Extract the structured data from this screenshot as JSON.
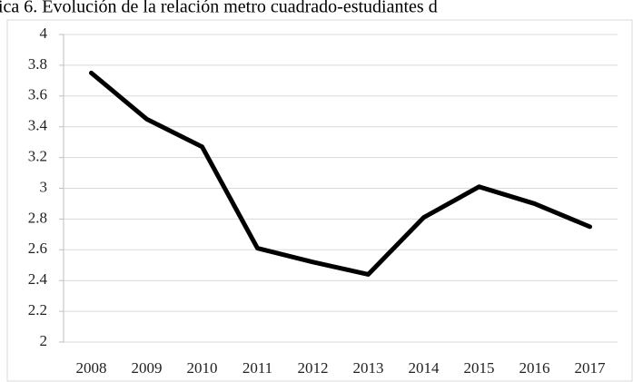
{
  "chart_data": {
    "type": "line",
    "title": "ica 6. Evolución de la relación metro cuadrado-estudiantes d",
    "categories": [
      "2008",
      "2009",
      "2010",
      "2011",
      "2012",
      "2013",
      "2014",
      "2015",
      "2016",
      "2017"
    ],
    "values": [
      3.75,
      3.45,
      3.27,
      2.61,
      2.52,
      2.44,
      2.81,
      3.01,
      2.9,
      2.75
    ],
    "color": "#000000",
    "ylim": [
      2,
      4
    ],
    "yticks": [
      2,
      2.2,
      2.4,
      2.6,
      2.8,
      3,
      3.2,
      3.4,
      3.6,
      3.8,
      4
    ],
    "grid": true
  }
}
